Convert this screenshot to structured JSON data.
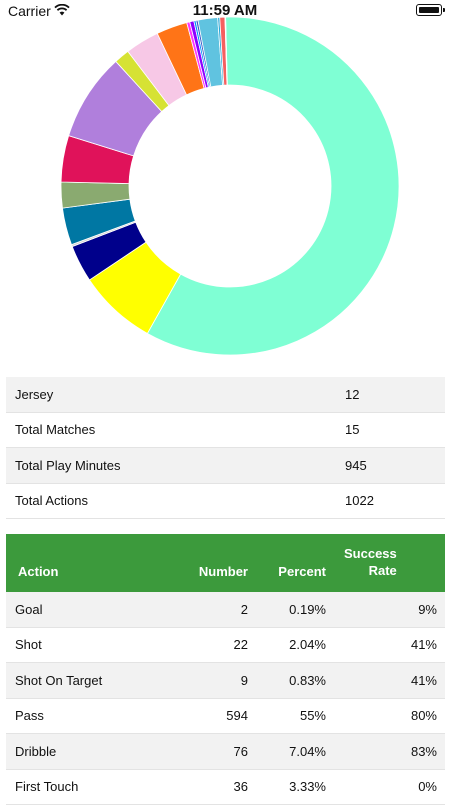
{
  "status_bar": {
    "carrier": "Carrier",
    "time": "11:59 AM"
  },
  "chart_data": {
    "type": "pie",
    "style": "donut",
    "slices": [
      {
        "value": 594,
        "color": "#7fffd4"
      },
      {
        "value": 76,
        "color": "#ffff00"
      },
      {
        "value": 36,
        "color": "#00008b"
      },
      {
        "value": 2,
        "color": "#d3d3d3"
      },
      {
        "value": 36,
        "color": "#0077a3"
      },
      {
        "value": 25,
        "color": "#8aaa70"
      },
      {
        "value": 45,
        "color": "#e0125a"
      },
      {
        "value": 85,
        "color": "#b07fdc"
      },
      {
        "value": 15,
        "color": "#d6e234"
      },
      {
        "value": 33,
        "color": "#f7c8e6"
      },
      {
        "value": 30,
        "color": "#ff7417"
      },
      {
        "value": 3,
        "color": "#ff33ff"
      },
      {
        "value": 4,
        "color": "#8b00ff"
      },
      {
        "value": 2,
        "color": "#0090ff"
      },
      {
        "value": 2,
        "color": "#3b5cc6"
      },
      {
        "value": 19,
        "color": "#60c3e0"
      },
      {
        "value": 2,
        "color": "#2aa8d8"
      },
      {
        "value": 5,
        "color": "#f56060"
      },
      {
        "value": 0.6,
        "color": "#90ee90"
      }
    ]
  },
  "info": [
    {
      "label": "Jersey",
      "value": "12"
    },
    {
      "label": "Total Matches",
      "value": "15"
    },
    {
      "label": "Total Play Minutes",
      "value": "945"
    },
    {
      "label": "Total Actions",
      "value": "1022"
    }
  ],
  "actions": {
    "headers": {
      "action": "Action",
      "number": "Number",
      "percent": "Percent",
      "success_line1": "Success",
      "success_line2": "Rate"
    },
    "rows": [
      {
        "action": "Goal",
        "number": "2",
        "percent": "0.19%",
        "success": "9%"
      },
      {
        "action": "Shot",
        "number": "22",
        "percent": "2.04%",
        "success": "41%"
      },
      {
        "action": "Shot On Target",
        "number": "9",
        "percent": "0.83%",
        "success": "41%"
      },
      {
        "action": "Pass",
        "number": "594",
        "percent": "55%",
        "success": "80%"
      },
      {
        "action": "Dribble",
        "number": "76",
        "percent": "7.04%",
        "success": "83%"
      },
      {
        "action": "First Touch",
        "number": "36",
        "percent": "3.33%",
        "success": "0%"
      }
    ]
  }
}
